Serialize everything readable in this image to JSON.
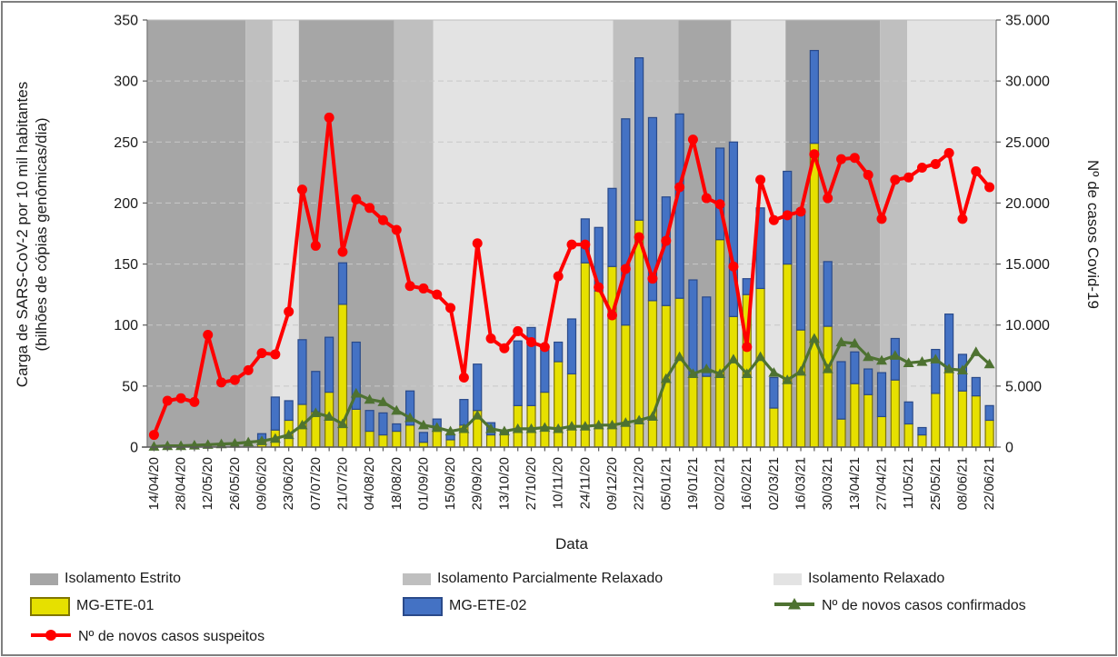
{
  "chart_data": {
    "type": "combo",
    "left_axis": {
      "title_line1": "Carga de SARS-CoV-2 por 10 mil habitantes",
      "title_line2": "(bilhões de cópias genômicas/dia)",
      "min": 0,
      "max": 350,
      "step": 50,
      "ticks": [
        "0",
        "50",
        "100",
        "150",
        "200",
        "250",
        "300",
        "350"
      ]
    },
    "right_axis": {
      "title": "Nº de casos Covid-19",
      "min": 0,
      "max": 35000,
      "step": 5000,
      "ticks": [
        "0",
        "5.000",
        "10.000",
        "15.000",
        "20.000",
        "25.000",
        "30.000",
        "35.000"
      ]
    },
    "x_axis": {
      "label": "Data",
      "n_weeks": 63,
      "tick_every": 2,
      "tick_labels": [
        "14/04/20",
        "28/04/20",
        "12/05/20",
        "26/05/20",
        "09/06/20",
        "23/06/20",
        "07/07/20",
        "21/07/20",
        "04/08/20",
        "18/08/20",
        "01/09/20",
        "15/09/20",
        "29/09/20",
        "13/10/20",
        "27/10/20",
        "10/11/20",
        "24/11/20",
        "09/12/20",
        "22/12/20",
        "05/01/21",
        "19/01/21",
        "02/02/21",
        "16/02/21",
        "02/03/21",
        "16/03/21",
        "30/03/21",
        "13/04/21",
        "27/04/21",
        "11/05/21",
        "25/05/21",
        "08/06/21",
        "22/06/21"
      ]
    },
    "isolation_bands": [
      {
        "label": "Isolamento Estrito",
        "color": "#a6a6a6",
        "from_week": 0,
        "to_week": 7.3
      },
      {
        "label": "Isolamento Parcialmente Relaxado",
        "color": "#bfbfbf",
        "from_week": 7.3,
        "to_week": 9.3
      },
      {
        "label": "Isolamento Relaxado",
        "color": "#e3e3e3",
        "from_week": 9.3,
        "to_week": 11.25
      },
      {
        "label": "Isolamento Estrito",
        "color": "#a6a6a6",
        "from_week": 11.25,
        "to_week": 18.33
      },
      {
        "label": "Isolamento Parcialmente Relaxado",
        "color": "#bfbfbf",
        "from_week": 18.33,
        "to_week": 21.23
      },
      {
        "label": "Isolamento Relaxado",
        "color": "#e3e3e3",
        "from_week": 21.23,
        "to_week": 34.57
      },
      {
        "label": "Isolamento Parcialmente Relaxado",
        "color": "#bfbfbf",
        "from_week": 34.57,
        "to_week": 39.42
      },
      {
        "label": "Isolamento Estrito",
        "color": "#a6a6a6",
        "from_week": 39.42,
        "to_week": 43.33
      },
      {
        "label": "Isolamento Relaxado",
        "color": "#e3e3e3",
        "from_week": 43.33,
        "to_week": 47.37
      },
      {
        "label": "Isolamento Estrito",
        "color": "#a6a6a6",
        "from_week": 47.37,
        "to_week": 54.38
      },
      {
        "label": "Isolamento Parcialmente Relaxado",
        "color": "#bfbfbf",
        "from_week": 54.38,
        "to_week": 56.4
      },
      {
        "label": "Isolamento Relaxado",
        "color": "#e3e3e3",
        "from_week": 56.4,
        "to_week": 63
      }
    ],
    "series": [
      {
        "name": "MG-ETE-01",
        "type": "bar-stack",
        "axis": "left",
        "color": "#e6e000",
        "border": "#807600",
        "values": [
          0,
          0,
          0,
          0,
          0,
          0,
          0,
          0,
          6,
          14,
          22,
          35,
          29,
          45,
          117,
          31,
          13,
          10,
          13,
          18,
          4,
          13,
          6,
          18,
          30,
          10,
          11,
          34,
          34,
          45,
          70,
          60,
          151,
          128,
          148,
          100,
          186,
          120,
          116,
          122,
          58,
          58,
          170,
          107,
          125,
          130,
          32,
          150,
          96,
          249,
          99,
          23,
          52,
          43,
          25,
          55,
          19,
          10,
          44,
          64,
          46,
          42,
          22
        ]
      },
      {
        "name": "MG-ETE-02",
        "type": "bar-stack",
        "axis": "left",
        "color": "#4472c4",
        "border": "#2a4a8a",
        "values": [
          0,
          0,
          0,
          0,
          0,
          0,
          0,
          0,
          5,
          27,
          16,
          53,
          33,
          45,
          34,
          55,
          17,
          18,
          6,
          28,
          8,
          10,
          4,
          21,
          38,
          10,
          3,
          53,
          64,
          37,
          16,
          45,
          36,
          52,
          64,
          169,
          133,
          150,
          89,
          151,
          79,
          65,
          75,
          143,
          13,
          66,
          25,
          76,
          99,
          76,
          53,
          47,
          26,
          21,
          36,
          34,
          18,
          6,
          36,
          45,
          30,
          15,
          12
        ]
      },
      {
        "name": "Nº de novos casos confirmados",
        "type": "line",
        "marker": "triangle",
        "axis": "right",
        "color": "#4e7231",
        "values": [
          50,
          100,
          100,
          150,
          200,
          250,
          300,
          400,
          500,
          700,
          1000,
          1800,
          2800,
          2500,
          1900,
          4400,
          3900,
          3700,
          3000,
          2400,
          1800,
          1600,
          1300,
          1500,
          2600,
          1500,
          1300,
          1500,
          1500,
          1600,
          1500,
          1700,
          1700,
          1800,
          1800,
          2000,
          2200,
          2500,
          5600,
          7400,
          6000,
          6400,
          6000,
          7200,
          6000,
          7400,
          6100,
          5500,
          6200,
          8900,
          6400,
          8600,
          8500,
          7400,
          7100,
          7500,
          6900,
          7000,
          7200,
          6400,
          6300,
          7800,
          6800
        ]
      },
      {
        "name": "Nº de novos casos suspeitos",
        "type": "line",
        "marker": "circle",
        "axis": "right",
        "color": "#ff0000",
        "values": [
          1000,
          3800,
          4000,
          3700,
          9200,
          5300,
          5500,
          6300,
          7700,
          7600,
          11100,
          21100,
          16500,
          27000,
          16000,
          20300,
          19600,
          18600,
          17800,
          13200,
          13000,
          12500,
          11400,
          5700,
          16700,
          8900,
          8100,
          9500,
          8600,
          8200,
          14000,
          16600,
          16600,
          13100,
          10800,
          14600,
          17200,
          13800,
          16900,
          21300,
          25200,
          20400,
          19900,
          14800,
          8200,
          21900,
          18600,
          19000,
          19300,
          24000,
          20400,
          23600,
          23700,
          22300,
          18700,
          21900,
          22100,
          22900,
          23200,
          24100,
          18700,
          22600,
          21300
        ]
      }
    ],
    "legend": [
      {
        "label": "Isolamento Estrito",
        "swatch": "band",
        "color": "#a6a6a6"
      },
      {
        "label": "Isolamento Parcialmente Relaxado",
        "swatch": "band",
        "color": "#bfbfbf"
      },
      {
        "label": "Isolamento Relaxado",
        "swatch": "band",
        "color": "#e3e3e3"
      },
      {
        "label": "MG-ETE-01",
        "swatch": "bar",
        "color": "#e6e000",
        "border": "#807600"
      },
      {
        "label": "MG-ETE-02",
        "swatch": "bar",
        "color": "#4472c4",
        "border": "#2a4a8a"
      },
      {
        "label": "Nº de novos casos confirmados",
        "swatch": "line-triangle",
        "color": "#4e7231"
      },
      {
        "label": "Nº de novos casos suspeitos",
        "swatch": "line-circle",
        "color": "#ff0000"
      }
    ],
    "grid": {
      "color": "#c8c8c8",
      "dash": "6 4"
    }
  }
}
